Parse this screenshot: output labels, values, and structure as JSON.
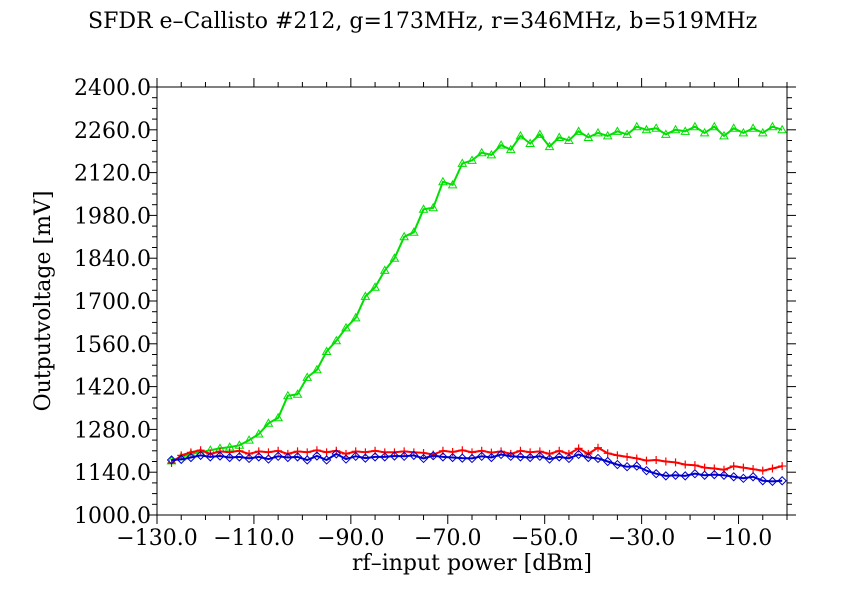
{
  "chart_data": {
    "type": "line",
    "title": "SFDR e–Callisto #212, g=173MHz, r=346MHz, b=519MHz",
    "xlabel": "rf–input power [dBm]",
    "ylabel": "Outputvoltage [mV]",
    "xlim": [
      -130,
      0
    ],
    "ylim": [
      1000,
      2400
    ],
    "xticks": [
      -130,
      -110,
      -90,
      -70,
      -50,
      -30,
      -10
    ],
    "xtick_labels": [
      "−130.0",
      "−110.0",
      "−90.0",
      "−70.0",
      "−50.0",
      "−30.0",
      "−10.0"
    ],
    "yticks": [
      1000,
      1140,
      1280,
      1420,
      1560,
      1700,
      1840,
      1980,
      2120,
      2260,
      2400
    ],
    "ytick_labels": [
      "1000.0",
      "1140.0",
      "1280.0",
      "1420.0",
      "1560.0",
      "1700.0",
      "1840.0",
      "1980.0",
      "2120.0",
      "2260.0",
      "2400.0"
    ],
    "x": [
      -127,
      -125,
      -123,
      -121,
      -119,
      -117,
      -115,
      -113,
      -111,
      -109,
      -107,
      -105,
      -103,
      -101,
      -99,
      -97,
      -95,
      -93,
      -91,
      -89,
      -87,
      -85,
      -83,
      -81,
      -79,
      -77,
      -75,
      -73,
      -71,
      -69,
      -67,
      -65,
      -63,
      -61,
      -59,
      -57,
      -55,
      -53,
      -51,
      -49,
      -47,
      -45,
      -43,
      -41,
      -39,
      -37,
      -35,
      -33,
      -31,
      -29,
      -27,
      -25,
      -23,
      -21,
      -19,
      -17,
      -15,
      -13,
      -11,
      -9,
      -7,
      -5,
      -3,
      -1
    ],
    "series": [
      {
        "color": "#00e000",
        "marker": "triangle",
        "values": [
          1177,
          1190,
          1200,
          1205,
          1212,
          1218,
          1222,
          1228,
          1245,
          1265,
          1300,
          1318,
          1390,
          1395,
          1450,
          1475,
          1535,
          1570,
          1612,
          1645,
          1715,
          1745,
          1800,
          1840,
          1910,
          1925,
          2000,
          2005,
          2090,
          2080,
          2150,
          2160,
          2185,
          2178,
          2210,
          2195,
          2240,
          2215,
          2245,
          2205,
          2235,
          2225,
          2255,
          2235,
          2250,
          2240,
          2255,
          2245,
          2270,
          2260,
          2265,
          2245,
          2260,
          2255,
          2270,
          2250,
          2270,
          2240,
          2265,
          2250,
          2265,
          2250,
          2270,
          2260
        ]
      },
      {
        "color": "#ff0000",
        "marker": "plus",
        "values": [
          1170,
          1195,
          1205,
          1212,
          1200,
          1208,
          1205,
          1210,
          1200,
          1208,
          1205,
          1210,
          1200,
          1208,
          1205,
          1212,
          1205,
          1210,
          1200,
          1208,
          1205,
          1210,
          1205,
          1205,
          1208,
          1205,
          1203,
          1198,
          1210,
          1206,
          1212,
          1205,
          1210,
          1204,
          1208,
          1200,
          1210,
          1205,
          1208,
          1200,
          1210,
          1200,
          1218,
          1200,
          1220,
          1202,
          1195,
          1190,
          1185,
          1178,
          1180,
          1175,
          1172,
          1165,
          1163,
          1155,
          1152,
          1148,
          1160,
          1155,
          1150,
          1145,
          1152,
          1160
        ]
      },
      {
        "color": "#0000cc",
        "marker": "diamond",
        "values": [
          1180,
          1182,
          1188,
          1195,
          1190,
          1193,
          1188,
          1190,
          1185,
          1190,
          1183,
          1192,
          1188,
          1190,
          1180,
          1193,
          1180,
          1200,
          1183,
          1192,
          1186,
          1190,
          1190,
          1193,
          1192,
          1195,
          1185,
          1194,
          1190,
          1188,
          1186,
          1185,
          1192,
          1188,
          1198,
          1192,
          1190,
          1188,
          1192,
          1183,
          1190,
          1185,
          1198,
          1188,
          1185,
          1175,
          1165,
          1158,
          1160,
          1145,
          1135,
          1128,
          1130,
          1128,
          1135,
          1130,
          1132,
          1130,
          1125,
          1120,
          1125,
          1112,
          1110,
          1112
        ]
      }
    ]
  }
}
